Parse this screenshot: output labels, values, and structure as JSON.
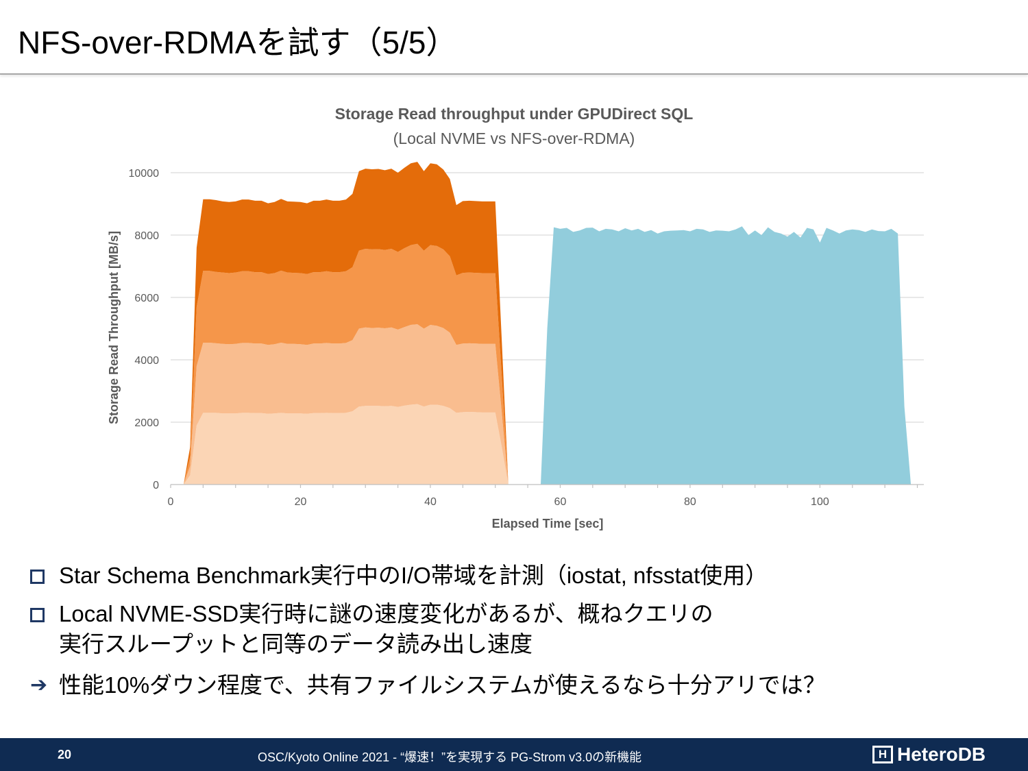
{
  "slide": {
    "title": "NFS-over-RDMAを試す（5/5）"
  },
  "chart_data": {
    "type": "area",
    "title": "Storage Read throughput under GPUDirect SQL",
    "subtitle": "(Local NVME vs NFS-over-RDMA)",
    "xlabel": "Elapsed Time [sec]",
    "ylabel": "Storage Read Throughput [MB/s]",
    "xlim": [
      0,
      116
    ],
    "ylim": [
      0,
      10000
    ],
    "x_ticks": [
      0,
      20,
      40,
      60,
      80,
      100
    ],
    "y_ticks": [
      0,
      2000,
      4000,
      6000,
      8000,
      10000
    ],
    "grid": true,
    "legend": "none",
    "local_nvme_x": [
      2,
      3,
      4,
      5,
      6,
      7,
      8,
      9,
      10,
      11,
      12,
      13,
      14,
      15,
      16,
      17,
      18,
      19,
      20,
      21,
      22,
      23,
      24,
      25,
      26,
      27,
      28,
      29,
      30,
      31,
      32,
      33,
      34,
      35,
      36,
      37,
      38,
      39,
      40,
      41,
      42,
      43,
      44,
      45,
      46,
      47,
      48,
      49,
      50,
      51,
      52
    ],
    "stacked_series": [
      {
        "color": "#fbd5b5",
        "values": [
          0,
          300,
          1900,
          2300,
          2300,
          2300,
          2280,
          2280,
          2280,
          2300,
          2300,
          2290,
          2290,
          2270,
          2280,
          2300,
          2280,
          2280,
          2280,
          2270,
          2290,
          2290,
          2300,
          2290,
          2290,
          2300,
          2350,
          2500,
          2520,
          2520,
          2520,
          2510,
          2520,
          2490,
          2530,
          2560,
          2580,
          2500,
          2560,
          2560,
          2520,
          2450,
          2300,
          2320,
          2330,
          2320,
          2310,
          2310,
          2310,
          1200,
          0
        ]
      },
      {
        "color": "#f9bd8f",
        "values": [
          0,
          300,
          1900,
          2250,
          2250,
          2230,
          2230,
          2220,
          2230,
          2240,
          2240,
          2230,
          2230,
          2210,
          2220,
          2250,
          2230,
          2230,
          2220,
          2210,
          2230,
          2230,
          2240,
          2230,
          2230,
          2240,
          2280,
          2500,
          2520,
          2500,
          2510,
          2500,
          2520,
          2480,
          2520,
          2560,
          2560,
          2500,
          2560,
          2530,
          2500,
          2420,
          2180,
          2200,
          2200,
          2200,
          2200,
          2200,
          2200,
          1100,
          0
        ]
      },
      {
        "color": "#f5964a",
        "values": [
          0,
          300,
          1900,
          2300,
          2300,
          2290,
          2290,
          2280,
          2290,
          2300,
          2300,
          2290,
          2290,
          2270,
          2280,
          2310,
          2290,
          2280,
          2280,
          2270,
          2290,
          2290,
          2300,
          2290,
          2290,
          2300,
          2340,
          2500,
          2520,
          2520,
          2520,
          2510,
          2520,
          2490,
          2530,
          2560,
          2580,
          2500,
          2560,
          2560,
          2520,
          2450,
          2230,
          2270,
          2270,
          2270,
          2270,
          2270,
          2270,
          1150,
          0
        ]
      },
      {
        "color": "#e46c0a",
        "values": [
          0,
          300,
          1900,
          2300,
          2300,
          2300,
          2280,
          2280,
          2280,
          2300,
          2300,
          2290,
          2290,
          2270,
          2280,
          2300,
          2280,
          2280,
          2280,
          2270,
          2290,
          2290,
          2300,
          2290,
          2290,
          2300,
          2350,
          2550,
          2570,
          2570,
          2570,
          2560,
          2570,
          2540,
          2580,
          2620,
          2630,
          2550,
          2620,
          2620,
          2560,
          2480,
          2250,
          2300,
          2300,
          2300,
          2300,
          2300,
          2300,
          1150,
          0
        ]
      }
    ],
    "nfs_over_rdma": {
      "color": "#92cddc",
      "x": [
        57,
        58,
        59,
        60,
        61,
        62,
        63,
        64,
        65,
        66,
        67,
        68,
        69,
        70,
        71,
        72,
        73,
        74,
        75,
        76,
        77,
        78,
        79,
        80,
        81,
        82,
        83,
        84,
        85,
        86,
        87,
        88,
        89,
        90,
        91,
        92,
        93,
        94,
        95,
        96,
        97,
        98,
        99,
        100,
        101,
        102,
        103,
        104,
        105,
        106,
        107,
        108,
        109,
        110,
        111,
        112,
        113,
        114
      ],
      "values": [
        0,
        5000,
        8250,
        8200,
        8230,
        8100,
        8150,
        8230,
        8240,
        8120,
        8200,
        8180,
        8120,
        8220,
        8150,
        8200,
        8100,
        8160,
        8050,
        8120,
        8140,
        8150,
        8160,
        8120,
        8200,
        8180,
        8100,
        8150,
        8140,
        8120,
        8180,
        8280,
        8000,
        8150,
        8000,
        8250,
        8100,
        8050,
        7950,
        8100,
        7920,
        8230,
        8180,
        7760,
        8230,
        8150,
        8050,
        8150,
        8180,
        8160,
        8100,
        8180,
        8130,
        8120,
        8200,
        8050,
        2500,
        0
      ]
    }
  },
  "bullets": [
    {
      "lines": [
        "Star Schema Benchmark実行中のI/O帯域を計測（iostat, nfsstat使用）"
      ]
    },
    {
      "lines": [
        "Local NVME-SSD実行時に謎の速度変化があるが、概ねクエリの",
        "実行スループットと同等のデータ読み出し速度"
      ]
    }
  ],
  "conclusion": "性能10%ダウン程度で、共有ファイルシステムが使えるなら十分アリでは？",
  "footer": {
    "page_number": "20",
    "text": "OSC/Kyoto Online 2021 - “爆速！”を実現する PG-Strom v3.0の新機能",
    "logo_mark": "H",
    "logo_text": "HeteroDB"
  }
}
